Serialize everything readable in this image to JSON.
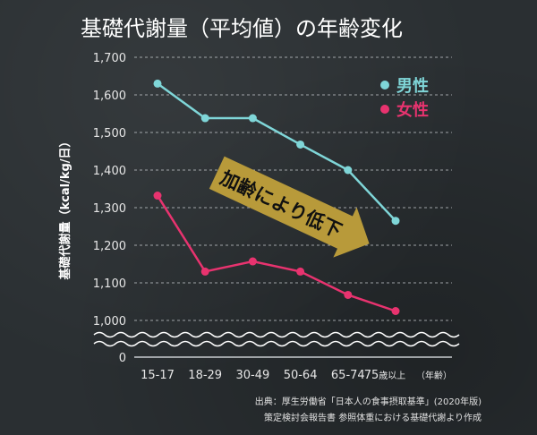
{
  "chart_data": {
    "type": "line",
    "title": "基礎代謝量（平均値）の年齢変化",
    "ylabel": "基礎代謝量（kcal/kg/日）",
    "xlabel": "",
    "categories": [
      "15-17",
      "18-29",
      "30-49",
      "50-64",
      "65-74",
      "75歳以上"
    ],
    "x_unit_label": "（年齢）",
    "y_ticks": [
      "1,700",
      "1,600",
      "1,500",
      "1,400",
      "1,300",
      "1,200",
      "1,100",
      "1,000",
      "0"
    ],
    "ylim": [
      1000,
      1700
    ],
    "axis_break": true,
    "grid": true,
    "legend_position": "top-right",
    "series": [
      {
        "name": "男性",
        "color": "#7fd6d8",
        "values": [
          1630,
          1538,
          1538,
          1468,
          1400,
          1265
        ]
      },
      {
        "name": "女性",
        "color": "#e8336f",
        "values": [
          1332,
          1130,
          1157,
          1130,
          1068,
          1025
        ]
      }
    ],
    "annotation": "加齢により低下",
    "annotation_color": "#b89a3a",
    "source_lines": [
      "出典：厚生労働省「日本人の食事摂取基準」(2020年版)",
      "策定検討会報告書 参照体重における基礎代謝より作成"
    ]
  }
}
